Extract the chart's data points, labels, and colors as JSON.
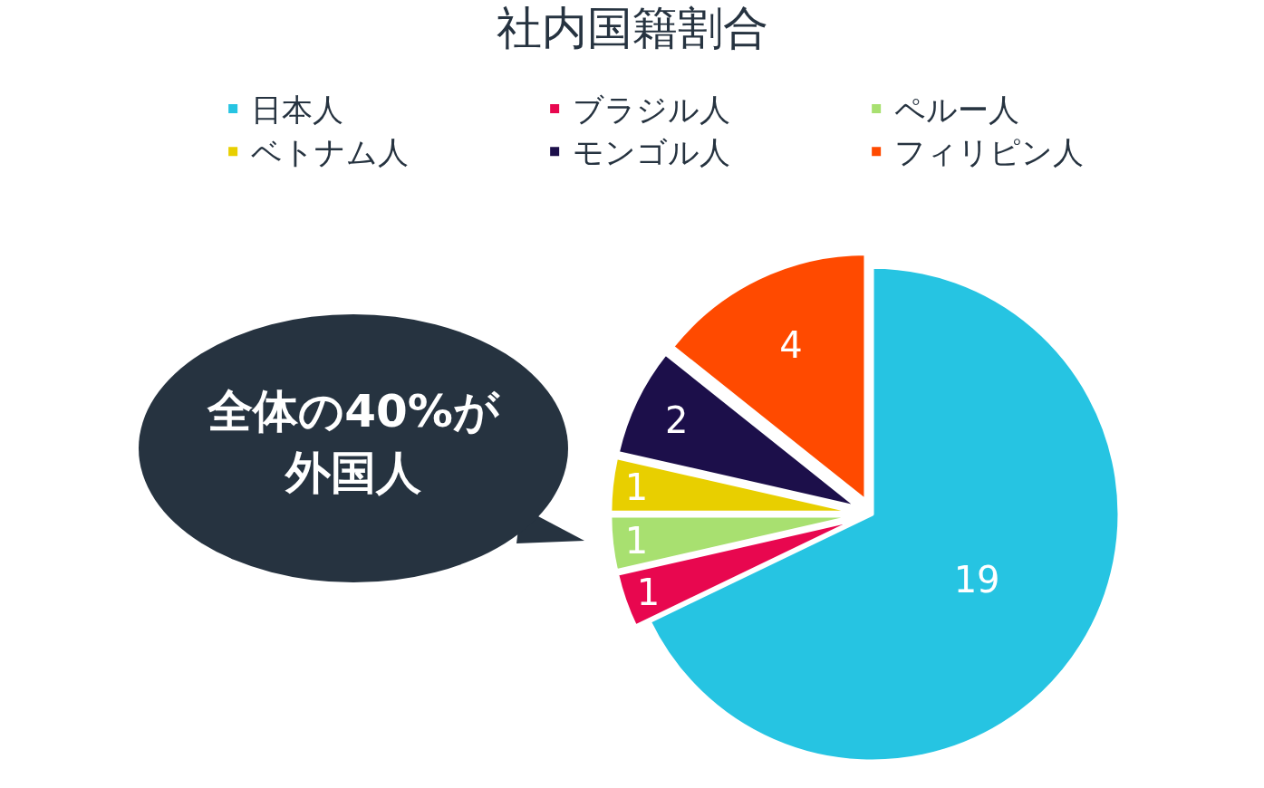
{
  "chart_data": {
    "type": "pie",
    "title": "社内国籍割合",
    "categories": [
      "日本人",
      "ブラジル人",
      "ペルー人",
      "ベトナム人",
      "モンゴル人",
      "フィリピン人"
    ],
    "values": [
      19,
      1,
      1,
      1,
      2,
      4
    ],
    "colors": [
      "#26c4e2",
      "#e8074f",
      "#a8e070",
      "#e8cf00",
      "#1c0f4a",
      "#ff4a00"
    ],
    "data_labels": true,
    "legend": "top",
    "annotations": [
      "全体の40%が外国人"
    ]
  }
}
